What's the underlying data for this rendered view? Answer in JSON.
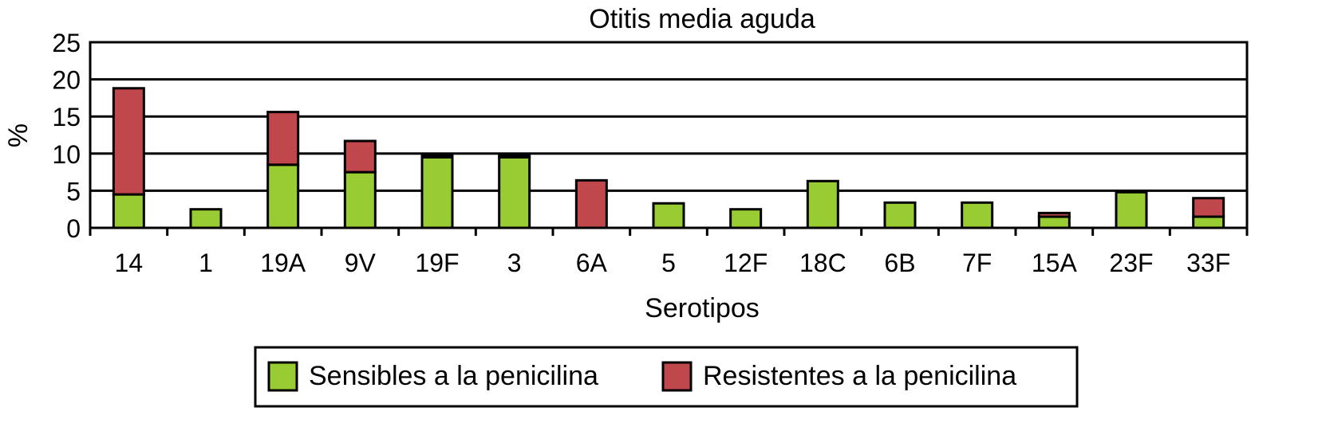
{
  "chart_data": {
    "type": "bar",
    "stacked": true,
    "title": "Otitis media aguda",
    "xlabel": "Serotipos",
    "ylabel": "%",
    "ylim": [
      0,
      25
    ],
    "yticks": [
      0,
      5,
      10,
      15,
      20,
      25
    ],
    "grid": true,
    "legend_position": "bottom",
    "categories": [
      "14",
      "1",
      "19A",
      "9V",
      "19F",
      "3",
      "6A",
      "5",
      "12F",
      "18C",
      "6B",
      "7F",
      "15A",
      "23F",
      "33F"
    ],
    "series": [
      {
        "name": "Sensibles a la penicilina",
        "color": "#99cc33",
        "values": [
          4.5,
          2.5,
          8.5,
          7.5,
          9.5,
          9.5,
          0,
          3.3,
          2.5,
          6.3,
          3.4,
          3.4,
          1.5,
          4.8,
          1.5
        ]
      },
      {
        "name": "Resistentes a la penicilina",
        "color": "#c0474b",
        "values": [
          14.3,
          0,
          7.1,
          4.2,
          0.3,
          0.3,
          6.4,
          0,
          0,
          0,
          0,
          0,
          0.5,
          0,
          2.5
        ]
      }
    ]
  }
}
